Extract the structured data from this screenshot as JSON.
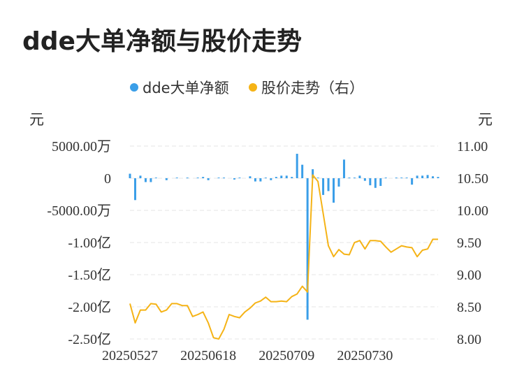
{
  "page": {
    "title": "dde大单净额与股价走势"
  },
  "colors": {
    "bar": "#3a9ee8",
    "line": "#f5b316",
    "grid": "#e6e6e6",
    "text": "#333333"
  },
  "chart_data": {
    "type": "bar+line",
    "legend": [
      {
        "name": "dde大单净额",
        "color": "#3a9ee8"
      },
      {
        "name": "股价走势（右）",
        "color": "#f5b316"
      }
    ],
    "left_axis": {
      "unit": "元",
      "tick_labels": [
        "5000.00万",
        "0",
        "-5000.00万",
        "-1.00亿",
        "-1.50亿",
        "-2.00亿",
        "-2.50亿"
      ],
      "tick_values": [
        50000000,
        0,
        -50000000,
        -100000000,
        -150000000,
        -200000000,
        -250000000
      ],
      "range": [
        -250000000,
        50000000
      ]
    },
    "right_axis": {
      "unit": "元",
      "tick_labels": [
        "11.00",
        "10.50",
        "10.00",
        "9.50",
        "9.00",
        "8.50",
        "8.00"
      ],
      "tick_values": [
        11.0,
        10.5,
        10.0,
        9.5,
        9.0,
        8.5,
        8.0
      ],
      "range": [
        8.0,
        11.0
      ]
    },
    "x_tick_labels": [
      {
        "label": "20250527",
        "index": 0
      },
      {
        "label": "20250618",
        "index": 15
      },
      {
        "label": "20250709",
        "index": 30
      },
      {
        "label": "20250730",
        "index": 45
      }
    ],
    "count": 60,
    "bars": [
      7000000,
      -34000000,
      4000000,
      -6000000,
      -6000000,
      1000000,
      0,
      -3000000,
      0,
      1000000,
      0,
      1000000,
      0,
      1000000,
      2000000,
      -3000000,
      0,
      1000000,
      1000000,
      0,
      -2000000,
      1000000,
      0,
      3000000,
      -5000000,
      -5000000,
      1000000,
      -3000000,
      2000000,
      4000000,
      4000000,
      2000000,
      38000000,
      21000000,
      -220000000,
      14000000,
      1000000,
      -26000000,
      -20000000,
      -38000000,
      -13000000,
      29000000,
      1000000,
      1000000,
      4000000,
      -4000000,
      -11000000,
      -15000000,
      -12000000,
      1000000,
      0,
      1000000,
      1000000,
      1000000,
      -10000000,
      4000000,
      4000000,
      5000000,
      3000000,
      2000000
    ],
    "prices": [
      8.55,
      8.25,
      8.45,
      8.45,
      8.55,
      8.54,
      8.42,
      8.45,
      8.55,
      8.55,
      8.52,
      8.52,
      8.35,
      8.38,
      8.42,
      8.25,
      8.02,
      8.0,
      8.15,
      8.38,
      8.35,
      8.33,
      8.42,
      8.48,
      8.56,
      8.59,
      8.65,
      8.58,
      8.58,
      8.59,
      8.58,
      8.66,
      8.7,
      8.82,
      8.73,
      10.55,
      10.45,
      9.95,
      9.45,
      9.28,
      9.39,
      9.32,
      9.31,
      9.5,
      9.53,
      9.4,
      9.53,
      9.53,
      9.52,
      9.43,
      9.35,
      9.4,
      9.45,
      9.43,
      9.42,
      9.28,
      9.38,
      9.4,
      9.55,
      9.55
    ]
  }
}
